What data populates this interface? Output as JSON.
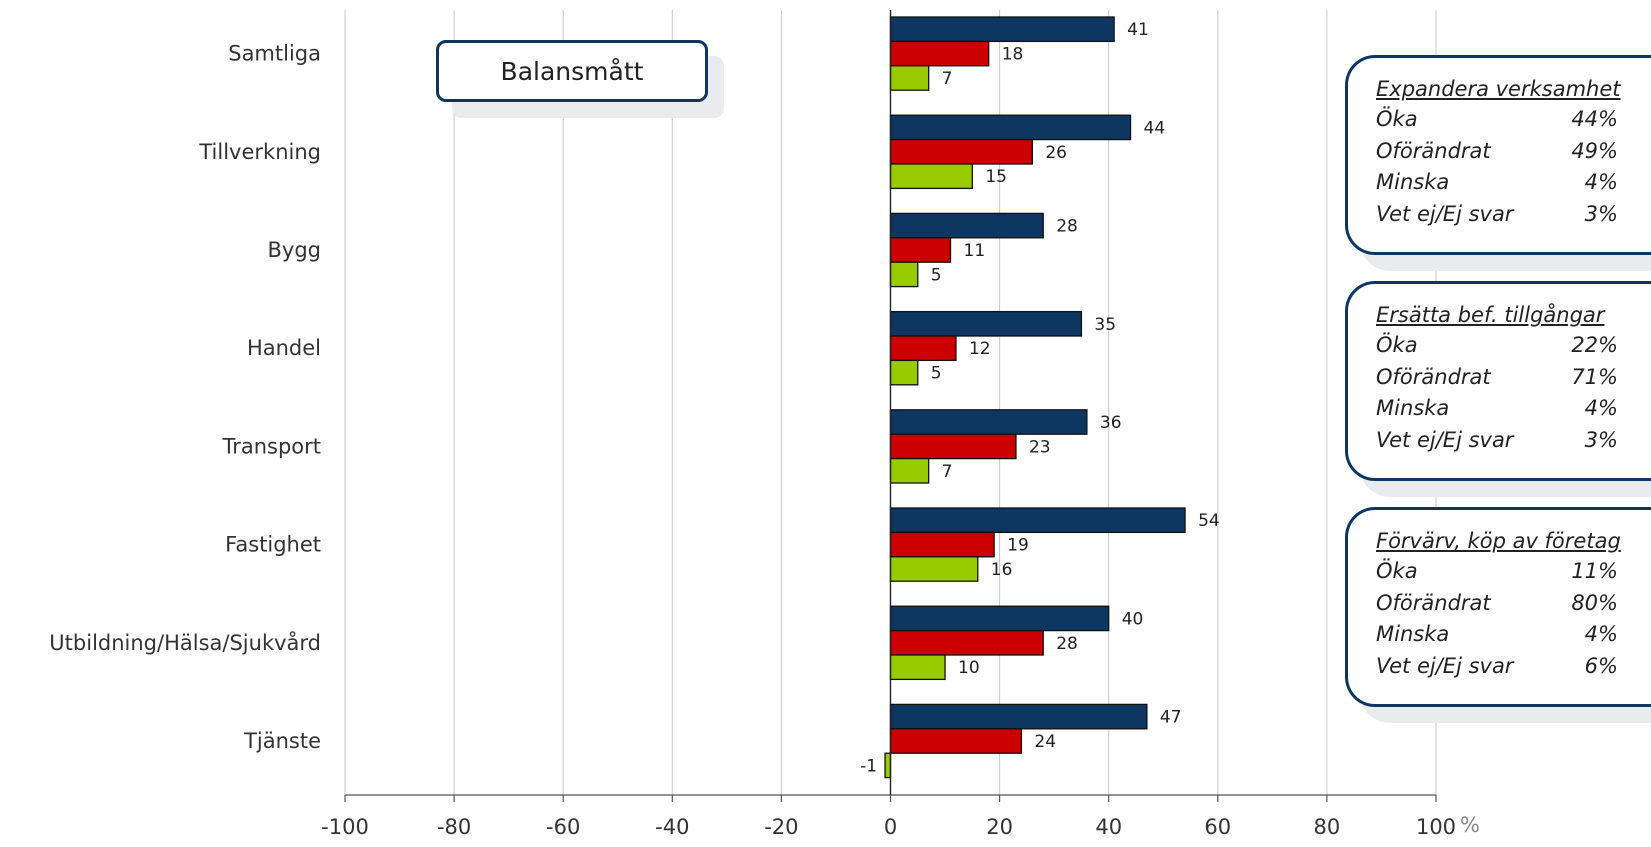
{
  "chart_data": {
    "type": "bar",
    "orientation": "horizontal",
    "categories": [
      "Samtliga",
      "Tillverkning",
      "Bygg",
      "Handel",
      "Transport",
      "Fastighet",
      "Utbildning/Hälsa/Sjukvård",
      "Tjänste"
    ],
    "series": [
      {
        "color": "#0d3760",
        "values": [
          41,
          44,
          28,
          35,
          36,
          54,
          40,
          47
        ]
      },
      {
        "color": "#cc0000",
        "values": [
          18,
          26,
          11,
          12,
          23,
          19,
          28,
          24
        ]
      },
      {
        "color": "#99cc00",
        "values": [
          7,
          15,
          5,
          5,
          7,
          16,
          10,
          -1
        ]
      }
    ],
    "xlim": [
      -100,
      100
    ],
    "xticks": [
      "-100",
      "-80",
      "-60",
      "-40",
      "-20",
      "0",
      "20",
      "40",
      "60",
      "80",
      "100"
    ],
    "xunit": "%",
    "grid": "vertical",
    "legend": "none"
  },
  "badge": {
    "label": "Balansmått"
  },
  "panels": [
    {
      "title": "Expandera verksamhet",
      "rows": [
        {
          "label": "Öka",
          "value": "44%"
        },
        {
          "label": "Oförändrat",
          "value": "49%"
        },
        {
          "label": "Minska",
          "value": "4%"
        },
        {
          "label": "Vet ej/Ej svar",
          "value": "3%"
        }
      ]
    },
    {
      "title": "Ersätta bef. tillgångar",
      "rows": [
        {
          "label": "Öka",
          "value": "22%"
        },
        {
          "label": "Oförändrat",
          "value": "71%"
        },
        {
          "label": "Minska",
          "value": "4%"
        },
        {
          "label": "Vet ej/Ej svar",
          "value": "3%"
        }
      ]
    },
    {
      "title": "Förvärv, köp av företag",
      "rows": [
        {
          "label": "Öka",
          "value": "11%"
        },
        {
          "label": "Oförändrat",
          "value": "80%"
        },
        {
          "label": "Minska",
          "value": "4%"
        },
        {
          "label": "Vet ej/Ej svar",
          "value": "6%"
        }
      ]
    }
  ]
}
